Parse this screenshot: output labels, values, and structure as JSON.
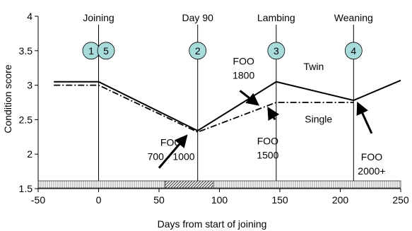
{
  "chart_data": {
    "type": "line",
    "xlabel": "Days from start of joining",
    "ylabel": "Condition score",
    "xlim": [
      -50,
      250
    ],
    "ylim": [
      1.5,
      4
    ],
    "x_ticks": [
      "-50",
      "0",
      "50",
      "100",
      "150",
      "200",
      "250"
    ],
    "y_ticks": [
      "1.5",
      "2",
      "2.5",
      "3",
      "3.5",
      "4"
    ],
    "grid": false,
    "series": [
      {
        "name": "Twin",
        "style": "solid",
        "x": [
          -37,
          0,
          82,
          147,
          211,
          250
        ],
        "y": [
          3.05,
          3.05,
          2.34,
          3.05,
          2.78,
          3.07
        ]
      },
      {
        "name": "Single",
        "style": "dash-dot",
        "x": [
          -37,
          0,
          82,
          147,
          211
        ],
        "y": [
          3.0,
          3.0,
          2.32,
          2.75,
          2.75
        ]
      }
    ],
    "events": [
      {
        "x": 0,
        "label": "Joining",
        "markers": [
          "1",
          "5"
        ]
      },
      {
        "x": 82,
        "label": "Day 90",
        "markers": [
          "2"
        ]
      },
      {
        "x": 147,
        "label": "Lambing",
        "markers": [
          "3"
        ]
      },
      {
        "x": 211,
        "label": "Weaning",
        "markers": [
          "4"
        ]
      }
    ],
    "annotations": [
      {
        "text": [
          "FOO",
          "700 - 1000"
        ]
      },
      {
        "text": [
          "FOO",
          "1800"
        ]
      },
      {
        "text": [
          "FOO",
          "1500"
        ]
      },
      {
        "text": [
          "FOO",
          "2000+"
        ]
      }
    ],
    "series_labels": [
      "Twin",
      "Single"
    ],
    "timeline_bar": [
      {
        "from": -50,
        "to": 55,
        "pattern": "vertical-light"
      },
      {
        "from": 55,
        "to": 95,
        "pattern": "diagonal"
      },
      {
        "from": 95,
        "to": 250,
        "pattern": "vertical-light"
      }
    ]
  },
  "colors": {
    "circle_fill": "#a8dcdc",
    "line": "#000000"
  }
}
